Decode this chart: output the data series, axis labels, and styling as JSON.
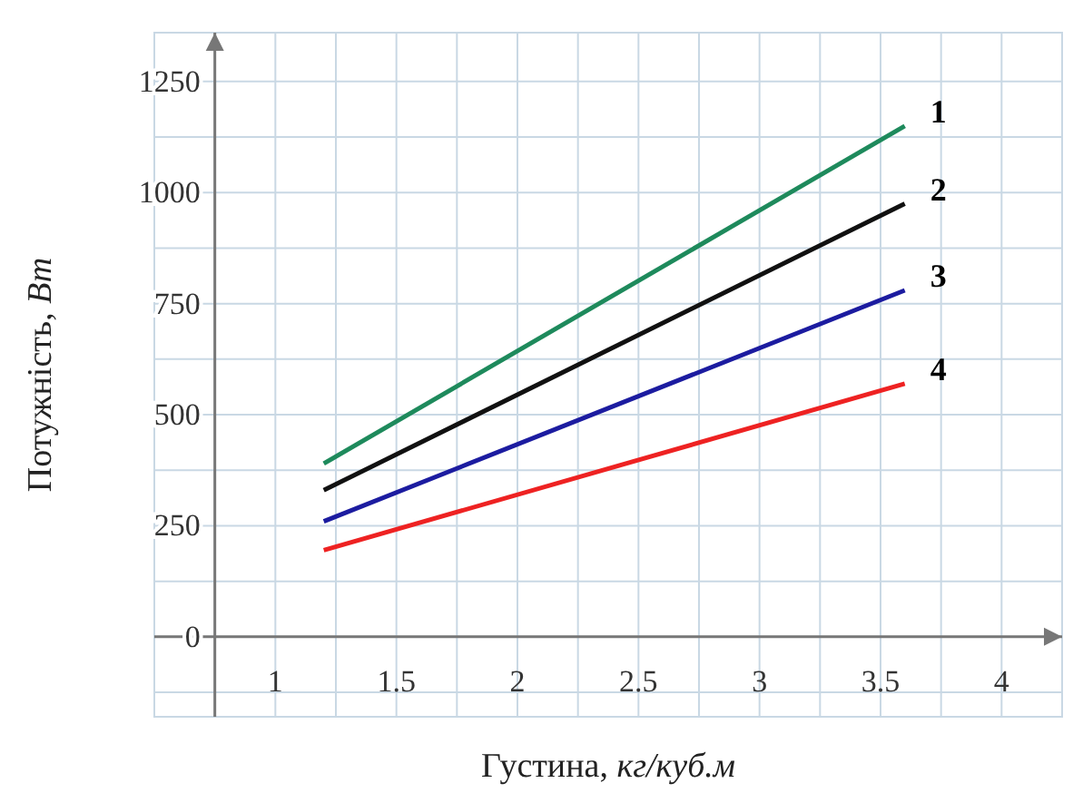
{
  "chart_data": {
    "type": "line",
    "xlabel": "Густина, кг/куб.м",
    "ylabel": "Потужність, Вт",
    "xlim": [
      0.5,
      4.25
    ],
    "ylim": [
      -180,
      1360
    ],
    "xticks": [
      {
        "value": 0.75,
        "label": null
      },
      1,
      {
        "value": 1.25,
        "label": null
      },
      1.5,
      {
        "value": 1.75,
        "label": null
      },
      2,
      {
        "value": 2.25,
        "label": null
      },
      2.5,
      {
        "value": 2.75,
        "label": null
      },
      3,
      {
        "value": 3.25,
        "label": null
      },
      3.5,
      {
        "value": 3.75,
        "label": null
      },
      4
    ],
    "yticks": [
      {
        "value": -125,
        "label": null
      },
      0,
      {
        "value": 125,
        "label": null
      },
      250,
      {
        "value": 375,
        "label": null
      },
      500,
      {
        "value": 625,
        "label": null
      },
      750,
      {
        "value": 875,
        "label": null
      },
      1000,
      {
        "value": 1125,
        "label": null
      },
      1250
    ],
    "grid": true,
    "legend": false,
    "line_style": "solid",
    "marker": "none",
    "x": [
      1.2,
      3.6
    ],
    "series": [
      {
        "name": "1",
        "color": "#1e8a5c",
        "values": [
          390,
          1150
        ]
      },
      {
        "name": "2",
        "color": "#111111",
        "values": [
          330,
          975
        ]
      },
      {
        "name": "3",
        "color": "#1c1ca0",
        "values": [
          260,
          780
        ]
      },
      {
        "name": "4",
        "color": "#ee2222",
        "values": [
          195,
          570
        ]
      }
    ]
  }
}
